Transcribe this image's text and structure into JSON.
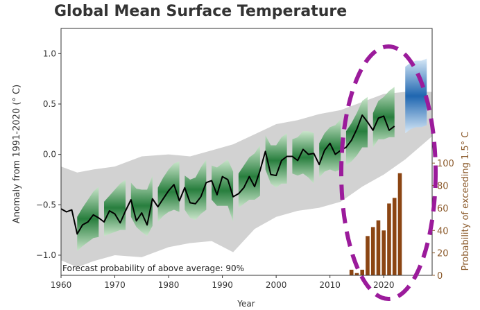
{
  "chart_data": {
    "type": "line",
    "title": "Global Mean Surface Temperature",
    "xlabel": "Year",
    "ylabel": "Anomaly from 1991-2020 (° C)",
    "y2label": "Probability of exceeding 1.5° C",
    "annotation": "Forecast probability of above average: 90%",
    "xlim": [
      1960,
      2029
    ],
    "ylim": [
      -1.2,
      1.25
    ],
    "y2lim": [
      0,
      220
    ],
    "xticks": [
      1960,
      1970,
      1980,
      1990,
      2000,
      2010,
      2020
    ],
    "yticks": [
      -1.0,
      -0.5,
      0.0,
      0.5,
      1.0
    ],
    "y2ticks": [
      0,
      20,
      40,
      60,
      80,
      100
    ],
    "grid": false,
    "legend": "none",
    "observed": {
      "x": [
        1960,
        1961,
        1962,
        1963,
        1964,
        1965,
        1966,
        1967,
        1968,
        1969,
        1970,
        1971,
        1972,
        1973,
        1974,
        1975,
        1976,
        1977,
        1978,
        1979,
        1980,
        1981,
        1982,
        1983,
        1984,
        1985,
        1986,
        1987,
        1988,
        1989,
        1990,
        1991,
        1992,
        1993,
        1994,
        1995,
        1996,
        1997,
        1998,
        1999,
        2000,
        2001,
        2002,
        2003,
        2004,
        2005,
        2006,
        2007,
        2008,
        2009,
        2010,
        2011,
        2012,
        2013,
        2014,
        2015,
        2016,
        2017,
        2018,
        2019,
        2020,
        2021,
        2022
      ],
      "y": [
        -0.54,
        -0.57,
        -0.55,
        -0.79,
        -0.7,
        -0.67,
        -0.6,
        -0.63,
        -0.67,
        -0.56,
        -0.59,
        -0.68,
        -0.56,
        -0.45,
        -0.66,
        -0.58,
        -0.7,
        -0.44,
        -0.52,
        -0.44,
        -0.36,
        -0.3,
        -0.46,
        -0.33,
        -0.48,
        -0.49,
        -0.42,
        -0.28,
        -0.26,
        -0.4,
        -0.22,
        -0.25,
        -0.42,
        -0.39,
        -0.33,
        -0.22,
        -0.32,
        -0.16,
        0.03,
        -0.2,
        -0.21,
        -0.06,
        -0.02,
        -0.02,
        -0.06,
        0.05,
        0.0,
        0.01,
        -0.1,
        0.04,
        0.11,
        0.0,
        0.04,
        0.07,
        0.14,
        0.25,
        0.39,
        0.32,
        0.24,
        0.36,
        0.38,
        0.24,
        0.28
      ]
    },
    "hindcast_uncertainty": {
      "x": [
        1960,
        1963,
        1966,
        1970,
        1975,
        1980,
        1984,
        1988,
        1992,
        1996,
        2000,
        2004,
        2008,
        2012,
        2016,
        2020,
        2024,
        2029
      ],
      "low": [
        -1.05,
        -1.12,
        -1.06,
        -1.0,
        -1.02,
        -0.92,
        -0.88,
        -0.86,
        -0.97,
        -0.74,
        -0.62,
        -0.56,
        -0.53,
        -0.47,
        -0.32,
        -0.2,
        -0.05,
        0.18
      ],
      "high": [
        -0.12,
        -0.18,
        -0.15,
        -0.12,
        -0.02,
        0.0,
        -0.02,
        0.04,
        0.1,
        0.2,
        0.3,
        0.34,
        0.4,
        0.44,
        0.52,
        0.6,
        0.62,
        0.62
      ]
    },
    "hindcasts": [
      {
        "start": 1963,
        "y": [
          -0.79,
          -0.72,
          -0.66,
          -0.6,
          -0.57
        ]
      },
      {
        "start": 1968,
        "y": [
          -0.64,
          -0.6,
          -0.56,
          -0.52,
          -0.5
        ]
      },
      {
        "start": 1973,
        "y": [
          -0.45,
          -0.53,
          -0.56,
          -0.58,
          -0.46
        ]
      },
      {
        "start": 1978,
        "y": [
          -0.5,
          -0.42,
          -0.36,
          -0.32,
          -0.32
        ]
      },
      {
        "start": 1983,
        "y": [
          -0.38,
          -0.44,
          -0.44,
          -0.36,
          -0.3
        ]
      },
      {
        "start": 1988,
        "y": [
          -0.28,
          -0.32,
          -0.3,
          -0.28,
          -0.42
        ]
      },
      {
        "start": 1993,
        "y": [
          -0.36,
          -0.3,
          -0.24,
          -0.22,
          -0.16
        ]
      },
      {
        "start": 1998,
        "y": [
          0.02,
          -0.1,
          -0.12,
          -0.06,
          -0.04
        ]
      },
      {
        "start": 2003,
        "y": [
          -0.02,
          -0.02,
          0.02,
          0.0,
          -0.04
        ]
      },
      {
        "start": 2008,
        "y": [
          -0.06,
          0.02,
          0.06,
          0.06,
          0.1
        ]
      },
      {
        "start": 2013,
        "y": [
          0.06,
          0.12,
          0.2,
          0.3,
          0.32
        ]
      },
      {
        "start": 2018,
        "y": [
          0.24,
          0.34,
          0.36,
          0.4,
          0.42
        ]
      }
    ],
    "forecast": {
      "x": [
        2024,
        2025,
        2026,
        2027,
        2028
      ],
      "y": [
        0.54,
        0.58,
        0.6,
        0.6,
        0.62
      ]
    },
    "probability_bars": {
      "x": [
        2014,
        2015,
        2016,
        2017,
        2018,
        2019,
        2020,
        2021,
        2022,
        2023
      ],
      "values": [
        5,
        2,
        5,
        35,
        43,
        49,
        40,
        64,
        69,
        91
      ]
    },
    "colors": {
      "uncertainty": "#d2d2d2",
      "hindcast": "#2f8a3e",
      "forecast": "#2f73b8",
      "observed": "#000000",
      "bars": "#8b4513",
      "y2_axis": "#8b5a2b",
      "circle": "#9b1b9b"
    }
  }
}
